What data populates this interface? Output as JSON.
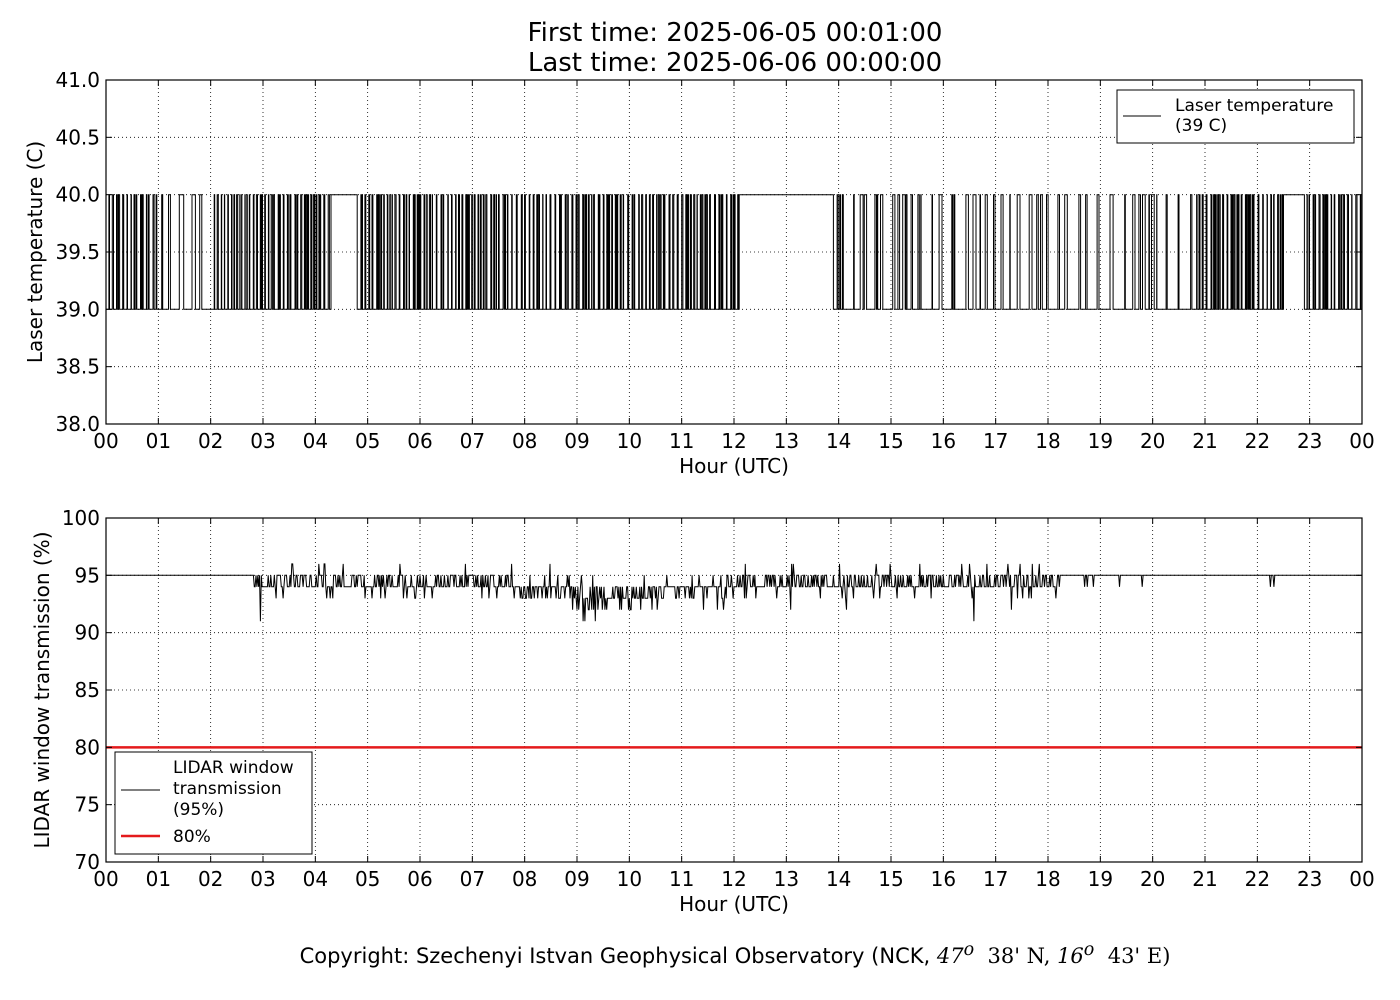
{
  "header": {
    "first_time": "First time: 2025-06-05 00:01:00",
    "last_time": "Last time: 2025-06-06 00:00:00"
  },
  "footer": {
    "prefix": "Copyright: Szechenyi Istvan Geophysical Observatory (NCK, ",
    "lat_deg": "47",
    "lat_min": "38' N, ",
    "lon_deg": "16",
    "lon_min": "43' E)"
  },
  "chart_data": [
    {
      "type": "line",
      "xlabel": "Hour (UTC)",
      "ylabel": "Laser temperature (C)",
      "ylim": [
        38.0,
        41.0
      ],
      "xlim": [
        0,
        24
      ],
      "x_ticks": [
        "00",
        "01",
        "02",
        "03",
        "04",
        "05",
        "06",
        "07",
        "08",
        "09",
        "10",
        "11",
        "12",
        "13",
        "14",
        "15",
        "16",
        "17",
        "18",
        "19",
        "20",
        "21",
        "22",
        "23",
        "00"
      ],
      "y_ticks": [
        "38.0",
        "38.5",
        "39.0",
        "39.5",
        "40.0",
        "40.5",
        "41.0"
      ],
      "grid": true,
      "legend_position": "top-right",
      "series": [
        {
          "name": "Laser temperature\n(39 C)",
          "color": "#000000",
          "values_levels": [
            39,
            40
          ],
          "segments": [
            {
              "from": 0.0,
              "to": 1.0,
              "state": "toggle"
            },
            {
              "from": 1.0,
              "to": 2.0,
              "state": "mostly-39"
            },
            {
              "from": 2.0,
              "to": 4.3,
              "state": "toggle"
            },
            {
              "from": 4.3,
              "to": 4.8,
              "state": "40"
            },
            {
              "from": 4.8,
              "to": 12.1,
              "state": "toggle"
            },
            {
              "from": 12.1,
              "to": 13.9,
              "state": "40"
            },
            {
              "from": 13.9,
              "to": 20.8,
              "state": "sparse"
            },
            {
              "from": 20.8,
              "to": 22.5,
              "state": "toggle"
            },
            {
              "from": 22.5,
              "to": 22.9,
              "state": "40"
            },
            {
              "from": 22.9,
              "to": 24.0,
              "state": "toggle"
            }
          ]
        }
      ]
    },
    {
      "type": "line",
      "xlabel": "Hour (UTC)",
      "ylabel": "LIDAR window transmission (%)",
      "ylim": [
        70,
        100
      ],
      "xlim": [
        0,
        24
      ],
      "x_ticks": [
        "00",
        "01",
        "02",
        "03",
        "04",
        "05",
        "06",
        "07",
        "08",
        "09",
        "10",
        "11",
        "12",
        "13",
        "14",
        "15",
        "16",
        "17",
        "18",
        "19",
        "20",
        "21",
        "22",
        "23",
        "00"
      ],
      "y_ticks": [
        "70",
        "75",
        "80",
        "85",
        "90",
        "95",
        "100"
      ],
      "grid": true,
      "legend_position": "bottom-left",
      "series": [
        {
          "name": "LIDAR window\ntransmission\n(95%)",
          "color": "#000000",
          "baseline": 95,
          "noisy_range": [
            2.8,
            18.2
          ],
          "dip_center": 9.6,
          "dip_min": 91
        },
        {
          "name": "80%",
          "color": "#e41a1c",
          "constant": 80
        }
      ]
    }
  ]
}
